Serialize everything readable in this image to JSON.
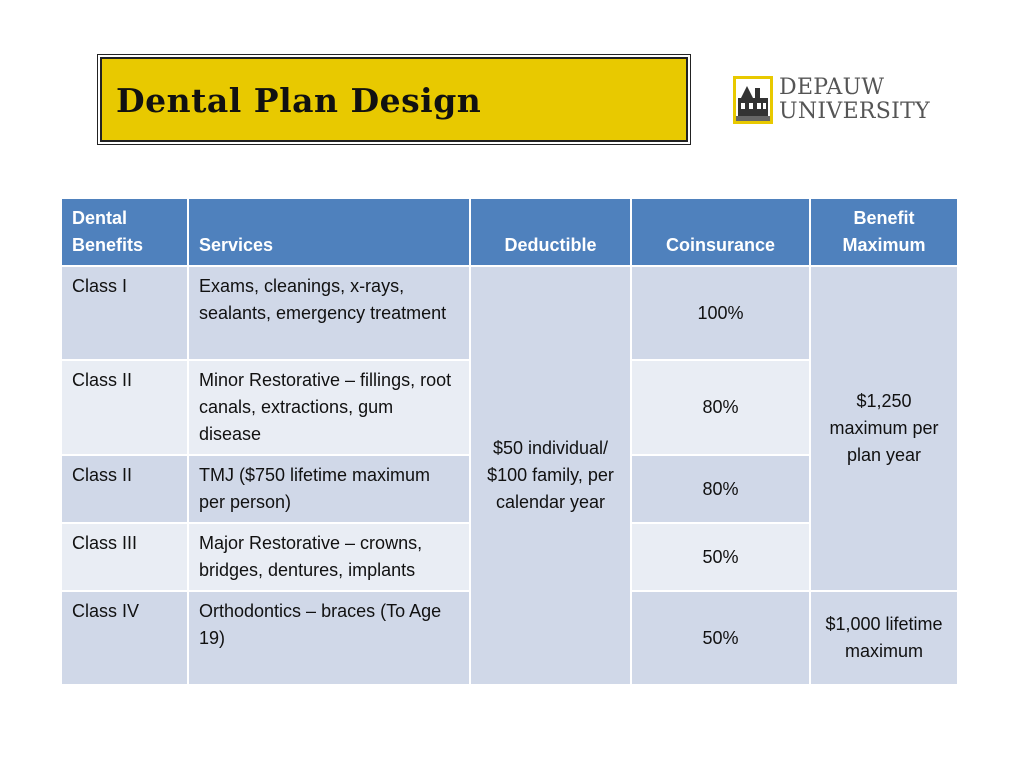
{
  "title": "Dental Plan Design",
  "logo": {
    "line1": "DEPAUW",
    "line2": "UNIVERSITY"
  },
  "table": {
    "headers": {
      "benefits": "Dental Benefits",
      "services": "Services",
      "deductible": "Deductible",
      "coinsurance": "Coinsurance",
      "maximum": "Benefit Maximum"
    },
    "rows": [
      {
        "class": "Class I",
        "services": "Exams, cleanings, x-rays, sealants, emergency treatment",
        "coinsurance": "100%"
      },
      {
        "class": "Class II",
        "services": "Minor Restorative – fillings, root canals, extractions, gum disease",
        "coinsurance": "80%"
      },
      {
        "class": "Class II",
        "services": "TMJ ($750 lifetime maximum per person)",
        "coinsurance": "80%"
      },
      {
        "class": "Class III",
        "services": "Major Restorative – crowns, bridges, dentures, implants",
        "coinsurance": "50%"
      },
      {
        "class": "Class IV",
        "services": "Orthodontics – braces (To Age 19)",
        "coinsurance": "50%"
      }
    ],
    "deductible": "$50 individual/ $100 family, per calendar year",
    "maximum_general": "$1,250 maximum per plan year",
    "maximum_ortho": "$1,000 lifetime maximum"
  },
  "colors": {
    "title_bg": "#e8c900",
    "header_bg": "#4f81bd",
    "row_dark": "#d0d8e8",
    "row_light": "#e9edf4"
  }
}
